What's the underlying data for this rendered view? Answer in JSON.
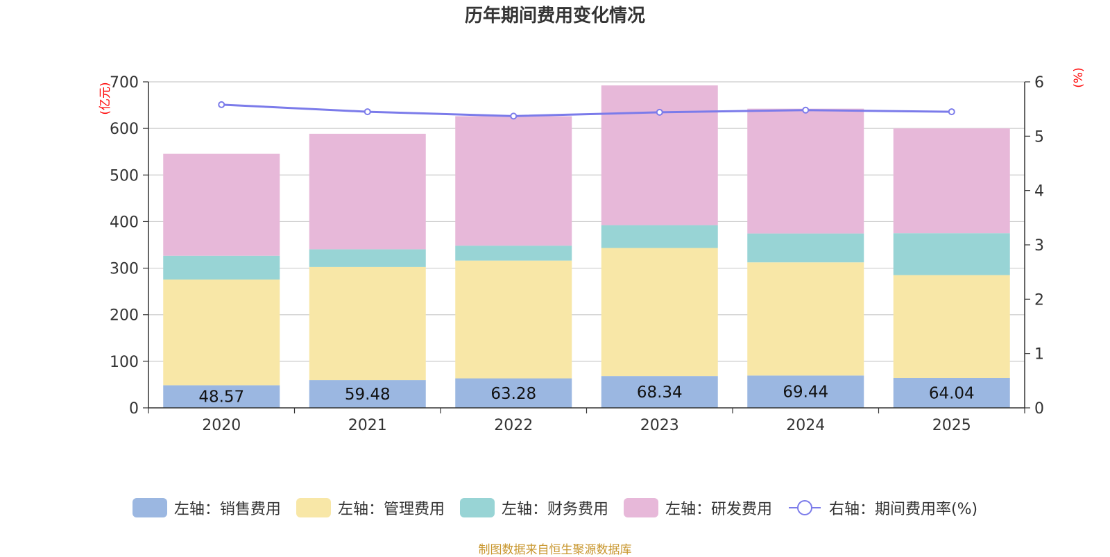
{
  "chart_data": {
    "type": "bar",
    "title": "历年期间费用变化情况",
    "categories": [
      "2020",
      "2021",
      "2022",
      "2023",
      "2024",
      "2025"
    ],
    "left_axis": {
      "unit_label": "(亿元)",
      "ylim": [
        0,
        700
      ],
      "ticks": [
        0,
        100,
        200,
        300,
        400,
        500,
        600,
        700
      ]
    },
    "right_axis": {
      "unit_label": "(%)",
      "ylim": [
        0,
        6
      ],
      "ticks": [
        0,
        1,
        2,
        3,
        4,
        5,
        6
      ]
    },
    "series": [
      {
        "name": "左轴：销售费用",
        "type": "bar",
        "stack": true,
        "color": "#9bb7e1",
        "values": [
          48.57,
          59.48,
          63.28,
          68.34,
          69.44,
          64.04
        ],
        "labels": [
          "48.57",
          "59.48",
          "63.28",
          "68.34",
          "69.44",
          "64.04"
        ]
      },
      {
        "name": "左轴：管理费用",
        "type": "bar",
        "stack": true,
        "color": "#f8e7a7",
        "values": [
          227,
          243,
          253,
          275,
          243,
          221
        ]
      },
      {
        "name": "左轴：财务费用",
        "type": "bar",
        "stack": true,
        "color": "#98d4d5",
        "values": [
          51,
          38,
          32,
          49,
          62,
          90
        ]
      },
      {
        "name": "左轴：研发费用",
        "type": "bar",
        "stack": true,
        "color": "#e7b8d9",
        "values": [
          219,
          248,
          278,
          300,
          268,
          225
        ]
      },
      {
        "name": "右轴：期间费用率(%)",
        "type": "line",
        "axis": "right",
        "color": "#7b7bea",
        "values": [
          5.58,
          5.45,
          5.37,
          5.44,
          5.48,
          5.45
        ]
      }
    ],
    "grid": true,
    "legend_position": "bottom"
  },
  "source": "制图数据来自恒生聚源数据库"
}
